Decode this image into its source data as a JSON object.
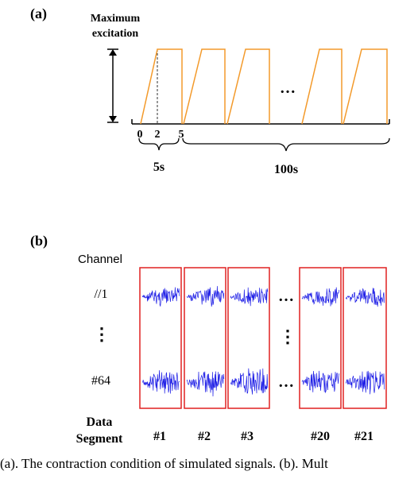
{
  "panel_a": {
    "label": "(a)",
    "excitation_label": [
      "Maximum",
      "excitation"
    ],
    "ticks": [
      "0",
      "2",
      "5"
    ],
    "ellipsis": "…",
    "span_short": "5s",
    "span_long": "100s",
    "line_color": "#F39A2B"
  },
  "panel_b": {
    "label": "(b)",
    "channel_header": "Channel",
    "channels": [
      "//1",
      "#64"
    ],
    "vertical_dots": "⋮",
    "horizontal_dots": "…",
    "row_label": [
      "Data",
      "Segment"
    ],
    "segments": [
      "#1",
      "#2",
      "#3",
      "#20",
      "#21"
    ],
    "signal_color": "#1F1FE6",
    "box_color": "#E02020"
  },
  "caption": "(a). The contraction condition of simulated signals. (b). Mult"
}
